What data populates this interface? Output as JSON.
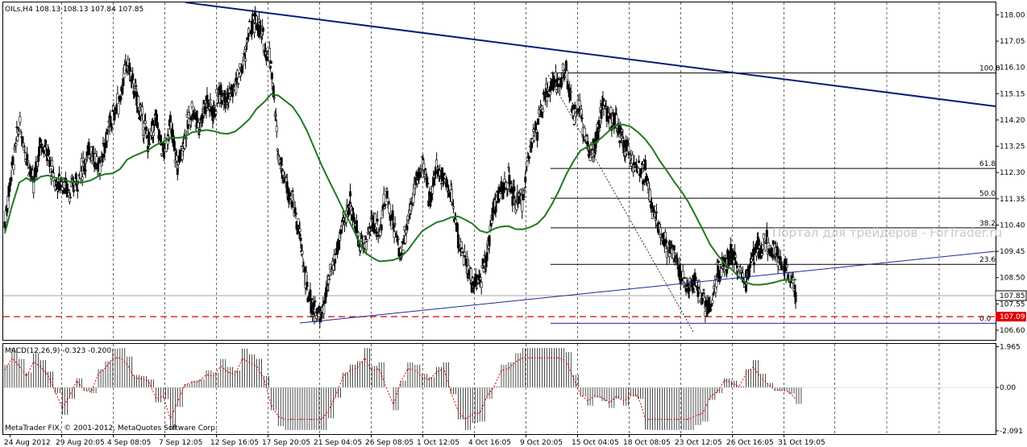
{
  "header": {
    "symbol_line": "OILs,H4  108.13 108.13 107.84 107.85",
    "macd_line": "MACD(12,26,9) -0.323 -0.200",
    "copyright": "MetaTrader FIX, © 2001-2012, MetaQuotes Software Corp.",
    "watermark": "Портал для трейдеров - ForTrader.ru"
  },
  "colors": {
    "bars": "#000000",
    "ma": "#1f7a1f",
    "trend_main": "#0b1b7a",
    "trend_thin": "#1a2a9a",
    "signal": "#e00000",
    "price_tag_current": "#000000",
    "price_tag_level": "#e00000",
    "grid": "#000000"
  },
  "chart_data": {
    "type": "candlestick",
    "symbol": "OILs",
    "timeframe": "H4",
    "price_axis_ticks": [
      "118.00",
      "117.05",
      "116.10",
      "115.15",
      "114.20",
      "113.25",
      "112.30",
      "111.35",
      "110.40",
      "109.45",
      "108.50",
      "107.55",
      "106.60"
    ],
    "price_range": [
      106.25,
      118.45
    ],
    "current_price": "107.85",
    "level_price": "107.09",
    "time_axis_labels": [
      "24 Aug 2012",
      "29 Aug 20:05",
      "4 Sep 08:05",
      "7 Sep 12:05",
      "12 Sep 16:05",
      "17 Sep 20:05",
      "21 Sep 04:05",
      "26 Sep 08:05",
      "1 Oct 12:05",
      "4 Oct 16:05",
      "9 Oct 20:05",
      "15 Oct 04:05",
      "18 Oct 08:05",
      "23 Oct 12:05",
      "26 Oct 16:05",
      "31 Oct 19:05"
    ],
    "fibonacci": {
      "high": 115.9,
      "low": 106.85,
      "levels": [
        {
          "label": "100.0",
          "price": 115.9
        },
        {
          "label": "61.8",
          "price": 112.45
        },
        {
          "label": "50.0",
          "price": 111.37
        },
        {
          "label": "38.2",
          "price": 110.3
        },
        {
          "label": "23.6",
          "price": 108.98
        },
        {
          "label": "0.0",
          "price": 106.85
        }
      ]
    },
    "close_path": [
      110.5,
      112.5,
      114.0,
      113.0,
      111.8,
      113.5,
      112.9,
      111.9,
      112.0,
      111.6,
      112.0,
      112.6,
      113.2,
      112.4,
      113.5,
      114.3,
      115.0,
      116.3,
      115.3,
      114.3,
      113.4,
      114.2,
      113.0,
      114.0,
      112.5,
      113.6,
      114.6,
      114.0,
      114.9,
      114.5,
      115.3,
      115.0,
      115.4,
      116.1,
      117.4,
      117.8,
      117.0,
      116.3,
      113.0,
      112.0,
      111.3,
      110.0,
      108.0,
      107.3,
      107.1,
      108.3,
      109.3,
      110.4,
      111.3,
      110.0,
      109.6,
      110.6,
      110.2,
      111.5,
      110.4,
      109.3,
      110.6,
      111.8,
      112.6,
      111.4,
      112.4,
      112.2,
      111.5,
      110.0,
      109.0,
      108.3,
      108.3,
      109.4,
      111.2,
      111.6,
      112.0,
      111.2,
      111.3,
      113.4,
      113.9,
      114.9,
      115.6,
      115.5,
      115.9,
      114.4,
      114.5,
      113.1,
      113.3,
      114.7,
      114.3,
      114.1,
      113.4,
      112.9,
      112.3,
      112.3,
      111.0,
      110.3,
      109.7,
      109.4,
      108.6,
      108.1,
      108.3,
      107.7,
      107.3,
      108.6,
      108.9,
      109.4,
      108.7,
      108.4,
      109.3,
      109.7,
      109.8,
      109.3,
      109.1,
      108.4,
      107.85
    ],
    "ma_period_label": "",
    "macd": {
      "params": "12,26,9",
      "main": -0.323,
      "signal": -0.2,
      "axis_ticks": [
        "1.965",
        "0.00",
        "-2.091"
      ],
      "range": [
        -2.25,
        2.1
      ]
    }
  }
}
